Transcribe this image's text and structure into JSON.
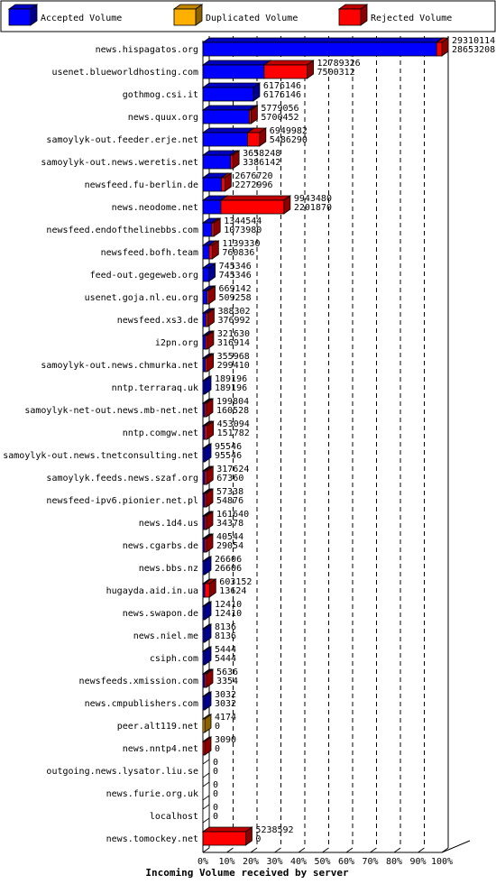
{
  "chart_data": {
    "type": "bar",
    "orientation": "horizontal",
    "stacked": true,
    "title": "",
    "xlabel": "Incoming Volume received by server",
    "ylabel": "",
    "xlim": [
      0,
      100
    ],
    "x_ticks": [
      "0%",
      "10%",
      "20%",
      "30%",
      "40%",
      "50%",
      "60%",
      "70%",
      "80%",
      "90%",
      "100%"
    ],
    "legend_position": "top",
    "colors": {
      "accepted": "#0000ff",
      "duplicated": "#ffb000",
      "rejected": "#ff0000"
    },
    "series": [
      {
        "name": "Accepted Volume",
        "key": "accepted"
      },
      {
        "name": "Duplicated Volume",
        "key": "duplicated"
      },
      {
        "name": "Rejected Volume",
        "key": "rejected"
      }
    ],
    "rows": [
      {
        "server": "news.hispagatos.org",
        "total": "29310114",
        "accepted": "28653208",
        "acc_pct": 97.8,
        "dup_pct": 0,
        "rej_pct": 2.2
      },
      {
        "server": "usenet.blueworldhosting.com",
        "total": "12789326",
        "accepted": "7500312",
        "acc_pct": 25.6,
        "dup_pct": 0,
        "rej_pct": 18.0
      },
      {
        "server": "gothmog.csi.it",
        "total": "6176146",
        "accepted": "6176146",
        "acc_pct": 21.1,
        "dup_pct": 0,
        "rej_pct": 0
      },
      {
        "server": "news.quux.org",
        "total": "5779056",
        "accepted": "5700452",
        "acc_pct": 19.4,
        "dup_pct": 0,
        "rej_pct": 0.3
      },
      {
        "server": "samoylyk-out.feeder.erje.net",
        "total": "6949982",
        "accepted": "5486290",
        "acc_pct": 18.7,
        "dup_pct": 0,
        "rej_pct": 5.0
      },
      {
        "server": "samoylyk-out.news.weretis.net",
        "total": "3658248",
        "accepted": "3386142",
        "acc_pct": 11.6,
        "dup_pct": 0,
        "rej_pct": 0.9
      },
      {
        "server": "newsfeed.fu-berlin.de",
        "total": "2676720",
        "accepted": "2272996",
        "acc_pct": 7.8,
        "dup_pct": 0,
        "rej_pct": 1.4
      },
      {
        "server": "news.neodome.net",
        "total": "9943480",
        "accepted": "2201870",
        "acc_pct": 7.5,
        "dup_pct": 0,
        "rej_pct": 26.4
      },
      {
        "server": "newsfeed.endofthelinebbs.com",
        "total": "1344544",
        "accepted": "1073980",
        "acc_pct": 3.7,
        "dup_pct": 0,
        "rej_pct": 0.9
      },
      {
        "server": "newsfeed.bofh.team",
        "total": "1139330",
        "accepted": "760836",
        "acc_pct": 2.6,
        "dup_pct": 0,
        "rej_pct": 1.3
      },
      {
        "server": "feed-out.gegeweb.org",
        "total": "745346",
        "accepted": "745346",
        "acc_pct": 2.5,
        "dup_pct": 0,
        "rej_pct": 0
      },
      {
        "server": "usenet.goja.nl.eu.org",
        "total": "669142",
        "accepted": "509258",
        "acc_pct": 1.7,
        "dup_pct": 0,
        "rej_pct": 0.5
      },
      {
        "server": "newsfeed.xs3.de",
        "total": "388302",
        "accepted": "376992",
        "acc_pct": 1.3,
        "dup_pct": 0,
        "rej_pct": 0.04
      },
      {
        "server": "i2pn.org",
        "total": "321630",
        "accepted": "316914",
        "acc_pct": 1.1,
        "dup_pct": 0,
        "rej_pct": 0.02
      },
      {
        "server": "samoylyk-out.news.chmurka.net",
        "total": "355968",
        "accepted": "299410",
        "acc_pct": 1.0,
        "dup_pct": 0,
        "rej_pct": 0.2
      },
      {
        "server": "nntp.terraraq.uk",
        "total": "189196",
        "accepted": "189196",
        "acc_pct": 0.65,
        "dup_pct": 0,
        "rej_pct": 0
      },
      {
        "server": "samoylyk-net-out.news.mb-net.net",
        "total": "199804",
        "accepted": "160528",
        "acc_pct": 0.55,
        "dup_pct": 0,
        "rej_pct": 0.13
      },
      {
        "server": "nntp.comgw.net",
        "total": "453094",
        "accepted": "151782",
        "acc_pct": 0.52,
        "dup_pct": 0,
        "rej_pct": 1.0
      },
      {
        "server": "samoylyk-out.news.tnetconsulting.net",
        "total": "95546",
        "accepted": "95546",
        "acc_pct": 0.33,
        "dup_pct": 0,
        "rej_pct": 0
      },
      {
        "server": "samoylyk.feeds.news.szaf.org",
        "total": "317624",
        "accepted": "67360",
        "acc_pct": 0.23,
        "dup_pct": 0,
        "rej_pct": 0.85
      },
      {
        "server": "newsfeed-ipv6.pionier.net.pl",
        "total": "57338",
        "accepted": "54876",
        "acc_pct": 0.19,
        "dup_pct": 0,
        "rej_pct": 0.01
      },
      {
        "server": "news.1d4.us",
        "total": "161640",
        "accepted": "34378",
        "acc_pct": 0.12,
        "dup_pct": 0,
        "rej_pct": 0.43
      },
      {
        "server": "news.cgarbs.de",
        "total": "40544",
        "accepted": "29054",
        "acc_pct": 0.1,
        "dup_pct": 0,
        "rej_pct": 0.04
      },
      {
        "server": "news.bbs.nz",
        "total": "26606",
        "accepted": "26606",
        "acc_pct": 0.09,
        "dup_pct": 0,
        "rej_pct": 0
      },
      {
        "server": "hugayda.aid.in.ua",
        "total": "603152",
        "accepted": "13624",
        "acc_pct": 0.05,
        "dup_pct": 0,
        "rej_pct": 2.0
      },
      {
        "server": "news.swapon.de",
        "total": "12410",
        "accepted": "12410",
        "acc_pct": 0.04,
        "dup_pct": 0,
        "rej_pct": 0
      },
      {
        "server": "news.niel.me",
        "total": "8136",
        "accepted": "8136",
        "acc_pct": 0.03,
        "dup_pct": 0,
        "rej_pct": 0
      },
      {
        "server": "csiph.com",
        "total": "5444",
        "accepted": "5444",
        "acc_pct": 0.02,
        "dup_pct": 0,
        "rej_pct": 0
      },
      {
        "server": "newsfeeds.xmission.com",
        "total": "5636",
        "accepted": "3354",
        "acc_pct": 0.01,
        "dup_pct": 0,
        "rej_pct": 0.01
      },
      {
        "server": "news.cmpublishers.com",
        "total": "3032",
        "accepted": "3032",
        "acc_pct": 0.01,
        "dup_pct": 0,
        "rej_pct": 0
      },
      {
        "server": "peer.alt119.net",
        "total": "4174",
        "accepted": "0",
        "acc_pct": 0,
        "dup_pct": 0.01,
        "rej_pct": 0
      },
      {
        "server": "news.nntp4.net",
        "total": "3090",
        "accepted": "0",
        "acc_pct": 0,
        "dup_pct": 0,
        "rej_pct": 0.01
      },
      {
        "server": "outgoing.news.lysator.liu.se",
        "total": "0",
        "accepted": "0",
        "acc_pct": 0,
        "dup_pct": 0,
        "rej_pct": 0
      },
      {
        "server": "news.furie.org.uk",
        "total": "0",
        "accepted": "0",
        "acc_pct": 0,
        "dup_pct": 0,
        "rej_pct": 0
      },
      {
        "server": "localhost",
        "total": "0",
        "accepted": "0",
        "acc_pct": 0,
        "dup_pct": 0,
        "rej_pct": 0
      },
      {
        "server": "news.tomockey.net",
        "total": "5238592",
        "accepted": "0",
        "acc_pct": 0,
        "dup_pct": 0,
        "rej_pct": 17.9
      }
    ]
  }
}
